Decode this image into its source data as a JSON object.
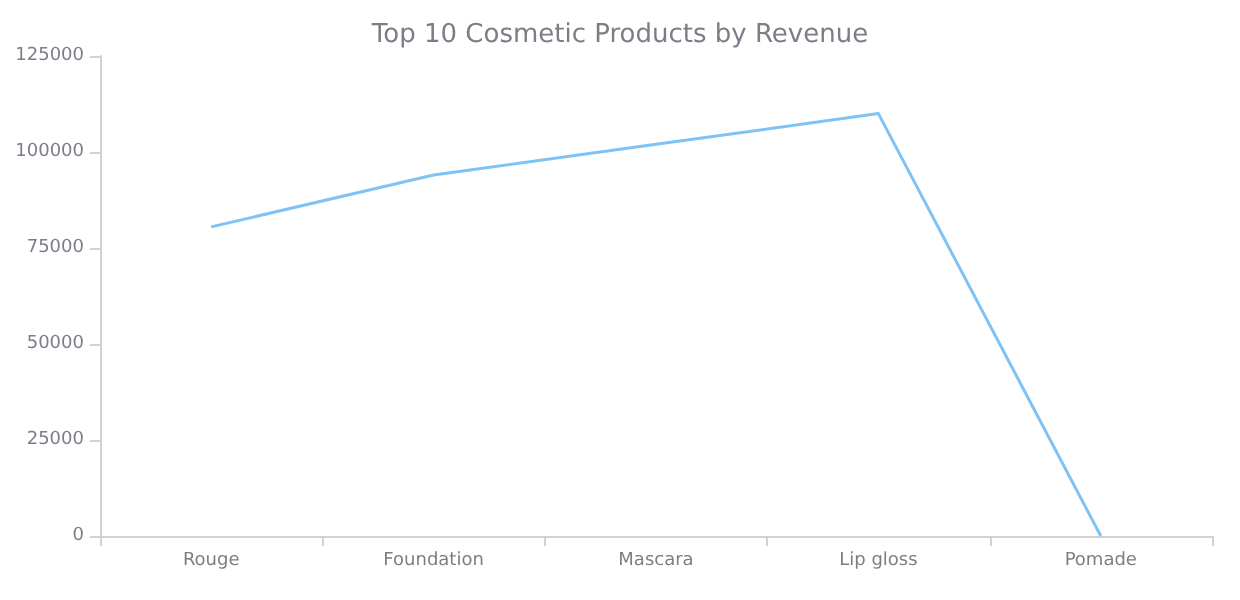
{
  "chart_data": {
    "type": "line",
    "title": "Top 10 Cosmetic Products by Revenue",
    "categories": [
      "Rouge",
      "Foundation",
      "Mascara",
      "Lip gloss",
      "Pomade"
    ],
    "series": [
      {
        "color": "#7ec3f5",
        "values": [
          80500,
          94000,
          102000,
          110000,
          0
        ]
      }
    ],
    "ylim": [
      0,
      125000
    ],
    "yticks": [
      0,
      25000,
      50000,
      75000,
      100000,
      125000
    ],
    "grid": false,
    "marker": "none",
    "line_style": "solid"
  }
}
